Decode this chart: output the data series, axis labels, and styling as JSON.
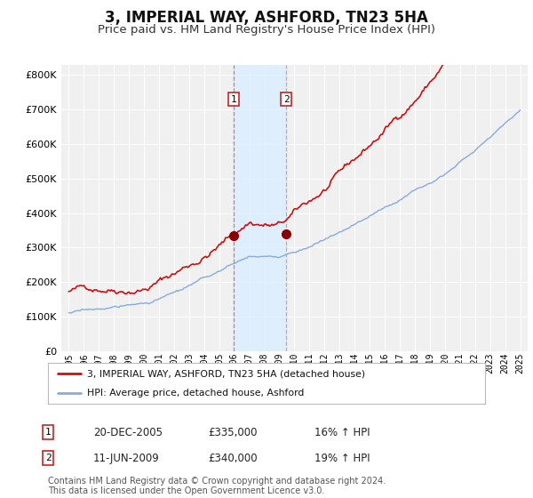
{
  "title": "3, IMPERIAL WAY, ASHFORD, TN23 5HA",
  "subtitle": "Price paid vs. HM Land Registry's House Price Index (HPI)",
  "title_fontsize": 12,
  "subtitle_fontsize": 9.5,
  "background_color": "#ffffff",
  "plot_bg_color": "#f0f0f0",
  "grid_color": "#ffffff",
  "red_line_color": "#cc1111",
  "blue_line_color": "#88aadd",
  "highlight_bg_color": "#ddeeff",
  "sale1_date_num": 2005.97,
  "sale1_price": 335000,
  "sale1_label": "1",
  "sale1_date_str": "20-DEC-2005",
  "sale1_pct": "16%",
  "sale2_date_num": 2009.44,
  "sale2_price": 340000,
  "sale2_label": "2",
  "sale2_date_str": "11-JUN-2009",
  "sale2_pct": "19%",
  "yticks": [
    0,
    100000,
    200000,
    300000,
    400000,
    500000,
    600000,
    700000,
    800000
  ],
  "ylim": [
    0,
    830000
  ],
  "xlim": [
    1994.5,
    2025.5
  ],
  "xticks": [
    1995,
    1996,
    1997,
    1998,
    1999,
    2000,
    2001,
    2002,
    2003,
    2004,
    2005,
    2006,
    2007,
    2008,
    2009,
    2010,
    2011,
    2012,
    2013,
    2014,
    2015,
    2016,
    2017,
    2018,
    2019,
    2020,
    2021,
    2022,
    2023,
    2024,
    2025
  ],
  "legend_red_label": "3, IMPERIAL WAY, ASHFORD, TN23 5HA (detached house)",
  "legend_blue_label": "HPI: Average price, detached house, Ashford",
  "footnote": "Contains HM Land Registry data © Crown copyright and database right 2024.\nThis data is licensed under the Open Government Licence v3.0.",
  "footnote_fontsize": 7.0
}
